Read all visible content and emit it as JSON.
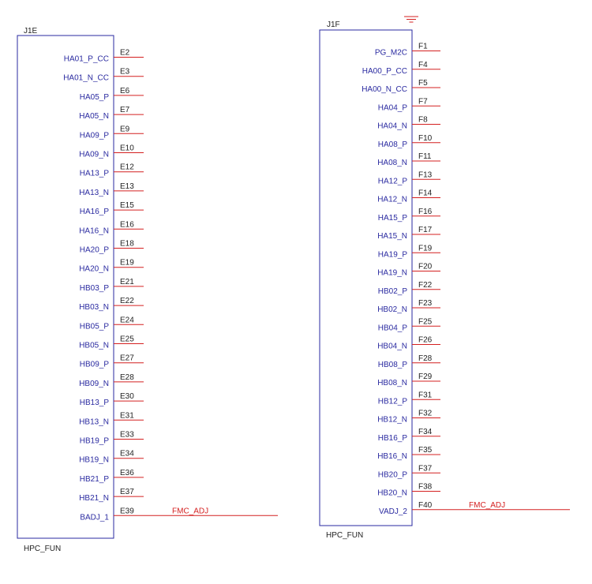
{
  "left_connector": {
    "ref": "J1E",
    "footer": "HPC_FUN",
    "pins": [
      {
        "name": "HA01_P_CC",
        "number": "E2"
      },
      {
        "name": "HA01_N_CC",
        "number": "E3"
      },
      {
        "name": "HA05_P",
        "number": "E6"
      },
      {
        "name": "HA05_N",
        "number": "E7"
      },
      {
        "name": "HA09_P",
        "number": "E9"
      },
      {
        "name": "HA09_N",
        "number": "E10"
      },
      {
        "name": "HA13_P",
        "number": "E12"
      },
      {
        "name": "HA13_N",
        "number": "E13"
      },
      {
        "name": "HA16_P",
        "number": "E15"
      },
      {
        "name": "HA16_N",
        "number": "E16"
      },
      {
        "name": "HA20_P",
        "number": "E18"
      },
      {
        "name": "HA20_N",
        "number": "E19"
      },
      {
        "name": "HB03_P",
        "number": "E21"
      },
      {
        "name": "HB03_N",
        "number": "E22"
      },
      {
        "name": "HB05_P",
        "number": "E24"
      },
      {
        "name": "HB05_N",
        "number": "E25"
      },
      {
        "name": "HB09_P",
        "number": "E27"
      },
      {
        "name": "HB09_N",
        "number": "E28"
      },
      {
        "name": "HB13_P",
        "number": "E30"
      },
      {
        "name": "HB13_N",
        "number": "E31"
      },
      {
        "name": "HB19_P",
        "number": "E33"
      },
      {
        "name": "HB19_N",
        "number": "E34"
      },
      {
        "name": "HB21_P",
        "number": "E36"
      },
      {
        "name": "HB21_N",
        "number": "E37"
      },
      {
        "name": "BADJ_1",
        "number": "E39",
        "net": "FMC_ADJ"
      }
    ]
  },
  "right_connector": {
    "ref": "J1F",
    "footer": "HPC_FUN",
    "has_ground_symbol": true,
    "pins": [
      {
        "name": "PG_M2C",
        "number": "F1"
      },
      {
        "name": "HA00_P_CC",
        "number": "F4"
      },
      {
        "name": "HA00_N_CC",
        "number": "F5"
      },
      {
        "name": "HA04_P",
        "number": "F7"
      },
      {
        "name": "HA04_N",
        "number": "F8"
      },
      {
        "name": "HA08_P",
        "number": "F10"
      },
      {
        "name": "HA08_N",
        "number": "F11"
      },
      {
        "name": "HA12_P",
        "number": "F13"
      },
      {
        "name": "HA12_N",
        "number": "F14"
      },
      {
        "name": "HA15_P",
        "number": "F16"
      },
      {
        "name": "HA15_N",
        "number": "F17"
      },
      {
        "name": "HA19_P",
        "number": "F19"
      },
      {
        "name": "HA19_N",
        "number": "F20"
      },
      {
        "name": "HB02_P",
        "number": "F22"
      },
      {
        "name": "HB02_N",
        "number": "F23"
      },
      {
        "name": "HB04_P",
        "number": "F25"
      },
      {
        "name": "HB04_N",
        "number": "F26"
      },
      {
        "name": "HB08_P",
        "number": "F28"
      },
      {
        "name": "HB08_N",
        "number": "F29"
      },
      {
        "name": "HB12_P",
        "number": "F31"
      },
      {
        "name": "HB12_N",
        "number": "F32"
      },
      {
        "name": "HB16_P",
        "number": "F34"
      },
      {
        "name": "HB16_N",
        "number": "F35"
      },
      {
        "name": "HB20_P",
        "number": "F37"
      },
      {
        "name": "HB20_N",
        "number": "F38"
      },
      {
        "name": "VADJ_2",
        "number": "F40",
        "net": "FMC_ADJ"
      }
    ]
  },
  "colors": {
    "body": "#2a2aa0",
    "wire": "#d42020",
    "text": "#222222"
  }
}
